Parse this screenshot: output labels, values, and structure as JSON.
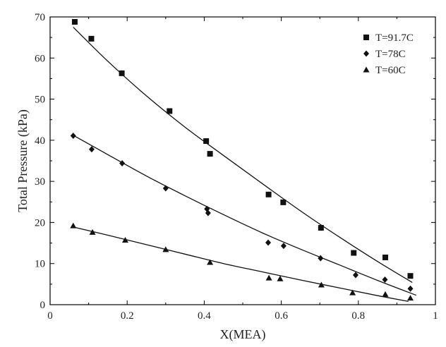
{
  "chart_data": {
    "type": "scatter",
    "xlabel": "X(MEA)",
    "ylabel": "Total Pressure (kPa)",
    "xlim": [
      0,
      1
    ],
    "ylim": [
      0,
      70
    ],
    "xticks": [
      0,
      0.2,
      0.4,
      0.6,
      0.8,
      1
    ],
    "xtick_labels": [
      "0",
      "0.2",
      "0.4",
      "0.6",
      "0.8",
      "1"
    ],
    "yticks": [
      0,
      10,
      20,
      30,
      40,
      50,
      60,
      70
    ],
    "ytick_labels": [
      "0",
      "10",
      "20",
      "30",
      "40",
      "50",
      "60",
      "70"
    ],
    "grid": false,
    "legend_position": "top-right",
    "series": [
      {
        "name": "T=91.7C",
        "marker": "square",
        "x": [
          0.064,
          0.107,
          0.186,
          0.31,
          0.405,
          0.415,
          0.567,
          0.605,
          0.703,
          0.788,
          0.87,
          0.935
        ],
        "y": [
          68.8,
          64.7,
          56.3,
          47.1,
          39.8,
          36.7,
          26.8,
          24.9,
          18.7,
          12.6,
          11.5,
          7.0
        ],
        "fit_x": [
          0.06,
          0.15,
          0.25,
          0.35,
          0.45,
          0.55,
          0.65,
          0.75,
          0.85,
          0.94
        ],
        "fit_y": [
          67.5,
          59.2,
          50.8,
          43.2,
          36.3,
          29.5,
          22.8,
          16.5,
          10.5,
          5.4
        ]
      },
      {
        "name": "T=78C",
        "marker": "diamond",
        "x": [
          0.06,
          0.108,
          0.187,
          0.3,
          0.407,
          0.41,
          0.566,
          0.606,
          0.702,
          0.793,
          0.869,
          0.935
        ],
        "y": [
          41.1,
          37.8,
          34.4,
          28.3,
          23.3,
          22.3,
          15.1,
          14.3,
          11.3,
          7.2,
          6.1,
          3.9
        ],
        "fit_x": [
          0.06,
          0.15,
          0.25,
          0.35,
          0.45,
          0.55,
          0.65,
          0.75,
          0.85,
          0.95
        ],
        "fit_y": [
          41.2,
          36.5,
          31.3,
          26.5,
          21.9,
          17.5,
          13.5,
          9.7,
          5.9,
          2.3
        ]
      },
      {
        "name": "T=60C",
        "marker": "triangle",
        "x": [
          0.06,
          0.11,
          0.195,
          0.3,
          0.415,
          0.568,
          0.597,
          0.704,
          0.785,
          0.87,
          0.935
        ],
        "y": [
          19.2,
          17.6,
          15.7,
          13.4,
          10.3,
          6.5,
          6.3,
          4.8,
          2.9,
          2.5,
          1.6
        ],
        "fit_x": [
          0.06,
          0.15,
          0.25,
          0.35,
          0.45,
          0.55,
          0.65,
          0.75,
          0.85,
          0.93
        ],
        "fit_y": [
          18.9,
          16.9,
          14.6,
          12.3,
          10.0,
          8.0,
          6.0,
          4.1,
          2.2,
          0.8
        ]
      }
    ]
  }
}
